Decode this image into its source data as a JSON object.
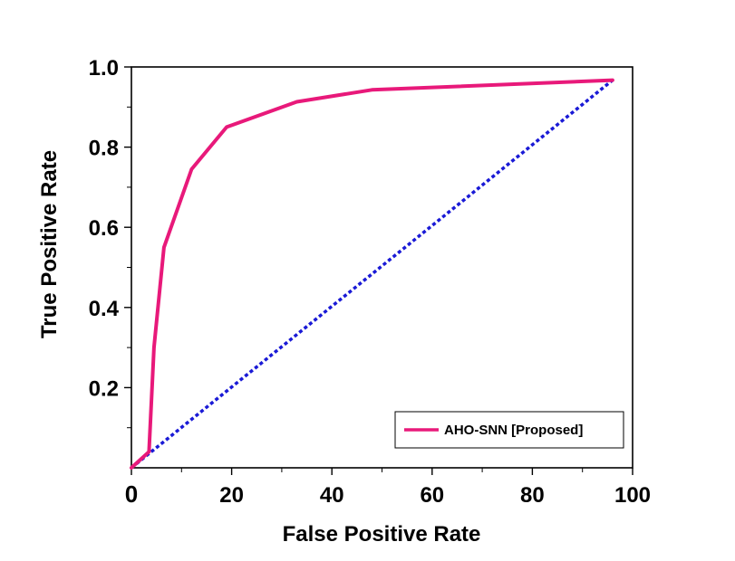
{
  "chart_data": {
    "type": "line",
    "xlabel": "False Positive Rate",
    "ylabel": "True Positive Rate",
    "xlim": [
      0,
      100
    ],
    "ylim": [
      0,
      1.0
    ],
    "x_ticks": [
      0,
      20,
      40,
      60,
      80,
      100
    ],
    "x_tick_labels": [
      "0",
      "20",
      "40",
      "60",
      "80",
      "100"
    ],
    "y_ticks": [
      0.2,
      0.4,
      0.6,
      0.8,
      1.0
    ],
    "y_tick_labels": [
      "0.2",
      "0.4",
      "0.6",
      "0.8",
      "1.0"
    ],
    "grid": false,
    "legend_position": "bottom-right",
    "series": [
      {
        "name": "AHO-SNN [Proposed]",
        "color": "#e8197a",
        "style": "solid",
        "x": [
          0,
          3.5,
          4.5,
          6.5,
          12,
          19,
          33,
          48,
          96
        ],
        "y": [
          0,
          0.04,
          0.3,
          0.55,
          0.745,
          0.85,
          0.913,
          0.943,
          0.967
        ]
      },
      {
        "name": "",
        "color": "#1a1ad6",
        "style": "dotted",
        "x": [
          0,
          96
        ],
        "y": [
          0,
          0.967
        ]
      }
    ]
  }
}
